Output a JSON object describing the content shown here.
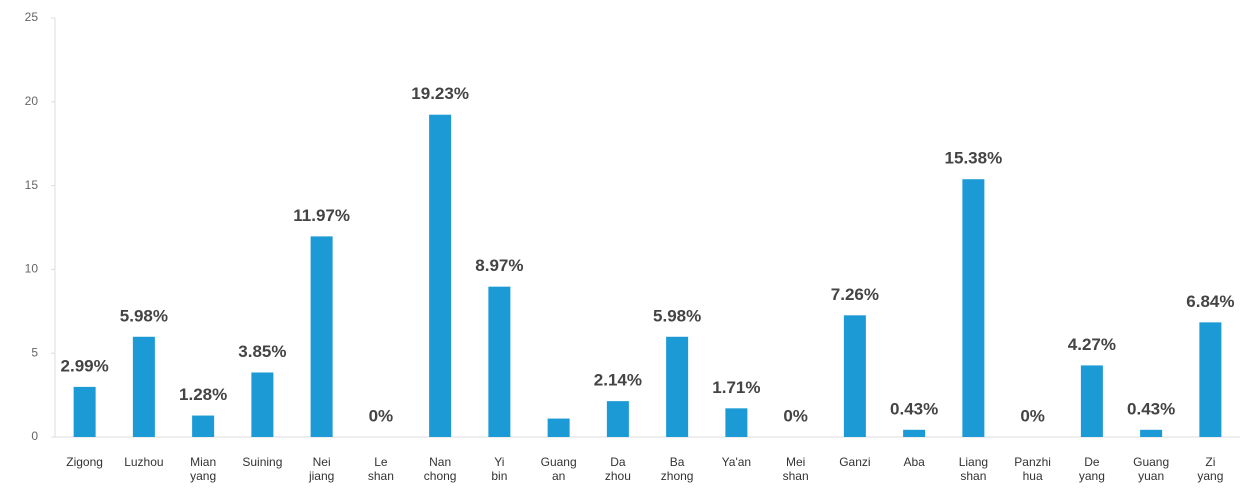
{
  "chart_data": {
    "type": "bar",
    "categories": [
      "Zigong",
      "Luzhou",
      "Mian yang",
      "Suining",
      "Nei jiang",
      "Le shan",
      "Nan chong",
      "Yi bin",
      "Guang an",
      "Da zhou",
      "Ba zhong",
      "Ya'an",
      "Mei shan",
      "Ganzi",
      "Aba",
      "Liang shan",
      "Panzhi hua",
      "De yang",
      "Guang yuan",
      "Zi yang"
    ],
    "values": [
      2.99,
      5.98,
      1.28,
      3.85,
      11.97,
      0,
      19.23,
      8.97,
      1.1,
      2.14,
      5.98,
      1.71,
      0,
      7.26,
      0.43,
      15.38,
      0,
      4.27,
      0.43,
      6.84
    ],
    "value_labels": [
      "2.99%",
      "5.98%",
      "1.28%",
      "3.85%",
      "11.97%",
      "0%",
      "19.23%",
      "8.97%",
      null,
      "2.14%",
      "5.98%",
      "1.71%",
      "0%",
      "7.26%",
      "0.43%",
      "15.38%",
      "0%",
      "4.27%",
      "0.43%",
      "6.84%"
    ],
    "color": "#1b9ad6",
    "ylim": [
      0,
      25
    ],
    "yticks": [
      0,
      5,
      10,
      15,
      20,
      25
    ],
    "grid": false
  }
}
